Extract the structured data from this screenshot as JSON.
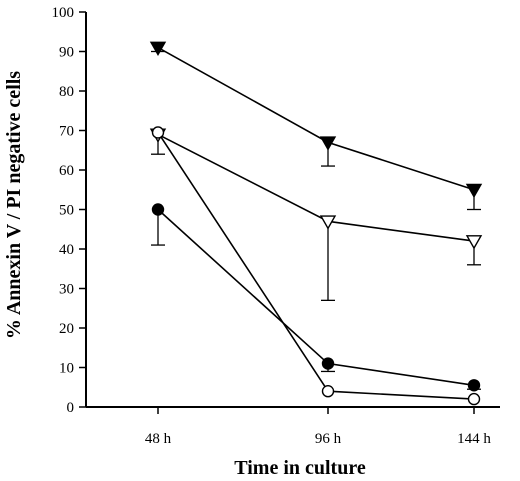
{
  "chart_data": {
    "type": "line",
    "xlabel": "Time in culture",
    "ylabel": "% Annexin V / PI negative cells",
    "categories": [
      "48 h",
      "96 h",
      "144 h"
    ],
    "ylim": [
      0,
      100
    ],
    "yticks": [
      0,
      10,
      20,
      30,
      40,
      50,
      60,
      70,
      80,
      90,
      100
    ],
    "grid": false,
    "legend": "none",
    "series": [
      {
        "marker": "triangle-down-filled",
        "values": [
          91,
          67,
          55
        ],
        "err": [
          1,
          6,
          5
        ]
      },
      {
        "marker": "triangle-down-open",
        "values": [
          69,
          47,
          42
        ],
        "err": [
          5,
          20,
          6
        ]
      },
      {
        "marker": "circle-filled",
        "values": [
          50,
          11,
          5.5
        ],
        "err": [
          9,
          2,
          1
        ]
      },
      {
        "marker": "circle-open",
        "values": [
          69.5,
          4,
          2
        ],
        "err": [
          0,
          0,
          0
        ]
      }
    ]
  }
}
